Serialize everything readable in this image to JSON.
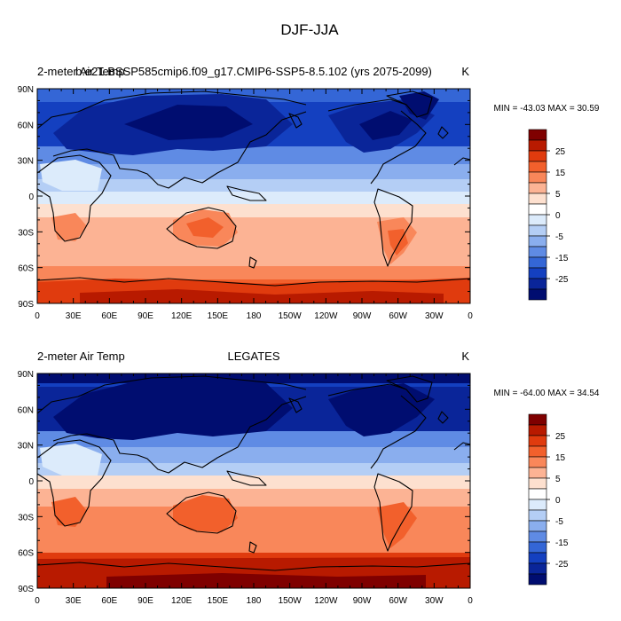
{
  "main_title": "DJF-JJA",
  "panels": [
    {
      "left_title": "2-meter Air Temp",
      "center_title": "b.e21.BSSP585cmip6.f09_g17.CMIP6-SSP5-8.5.102 (yrs 2075-2099)",
      "units": "K",
      "stats": "MIN = -43.03 MAX =  30.59"
    },
    {
      "left_title": "2-meter Air Temp",
      "center_title": "LEGATES",
      "units": "K",
      "stats": "MIN = -64.00 MAX =  34.54"
    }
  ],
  "chart_data": {
    "type": "heatmap",
    "x_tick_labels": [
      "0",
      "30E",
      "60E",
      "90E",
      "120E",
      "150E",
      "180",
      "150W",
      "120W",
      "90W",
      "60W",
      "30W",
      "0"
    ],
    "y_tick_labels": [
      "90N",
      "60N",
      "30N",
      "0",
      "30S",
      "60S",
      "90S"
    ],
    "x_range": [
      0,
      360
    ],
    "y_range": [
      -90,
      90
    ],
    "colorbar": {
      "labels": [
        "25",
        "15",
        "5",
        "0",
        "-5",
        "-15",
        "-25"
      ],
      "colors": [
        "#7f0000",
        "#b81a00",
        "#e03b0e",
        "#f2602c",
        "#f9875a",
        "#fcb394",
        "#fde0cf",
        "#ffffff",
        "#dcebfb",
        "#b4cef5",
        "#8aaeee",
        "#5f8be4",
        "#3466d6",
        "#1440c0",
        "#0a2599",
        "#000d70"
      ]
    }
  }
}
